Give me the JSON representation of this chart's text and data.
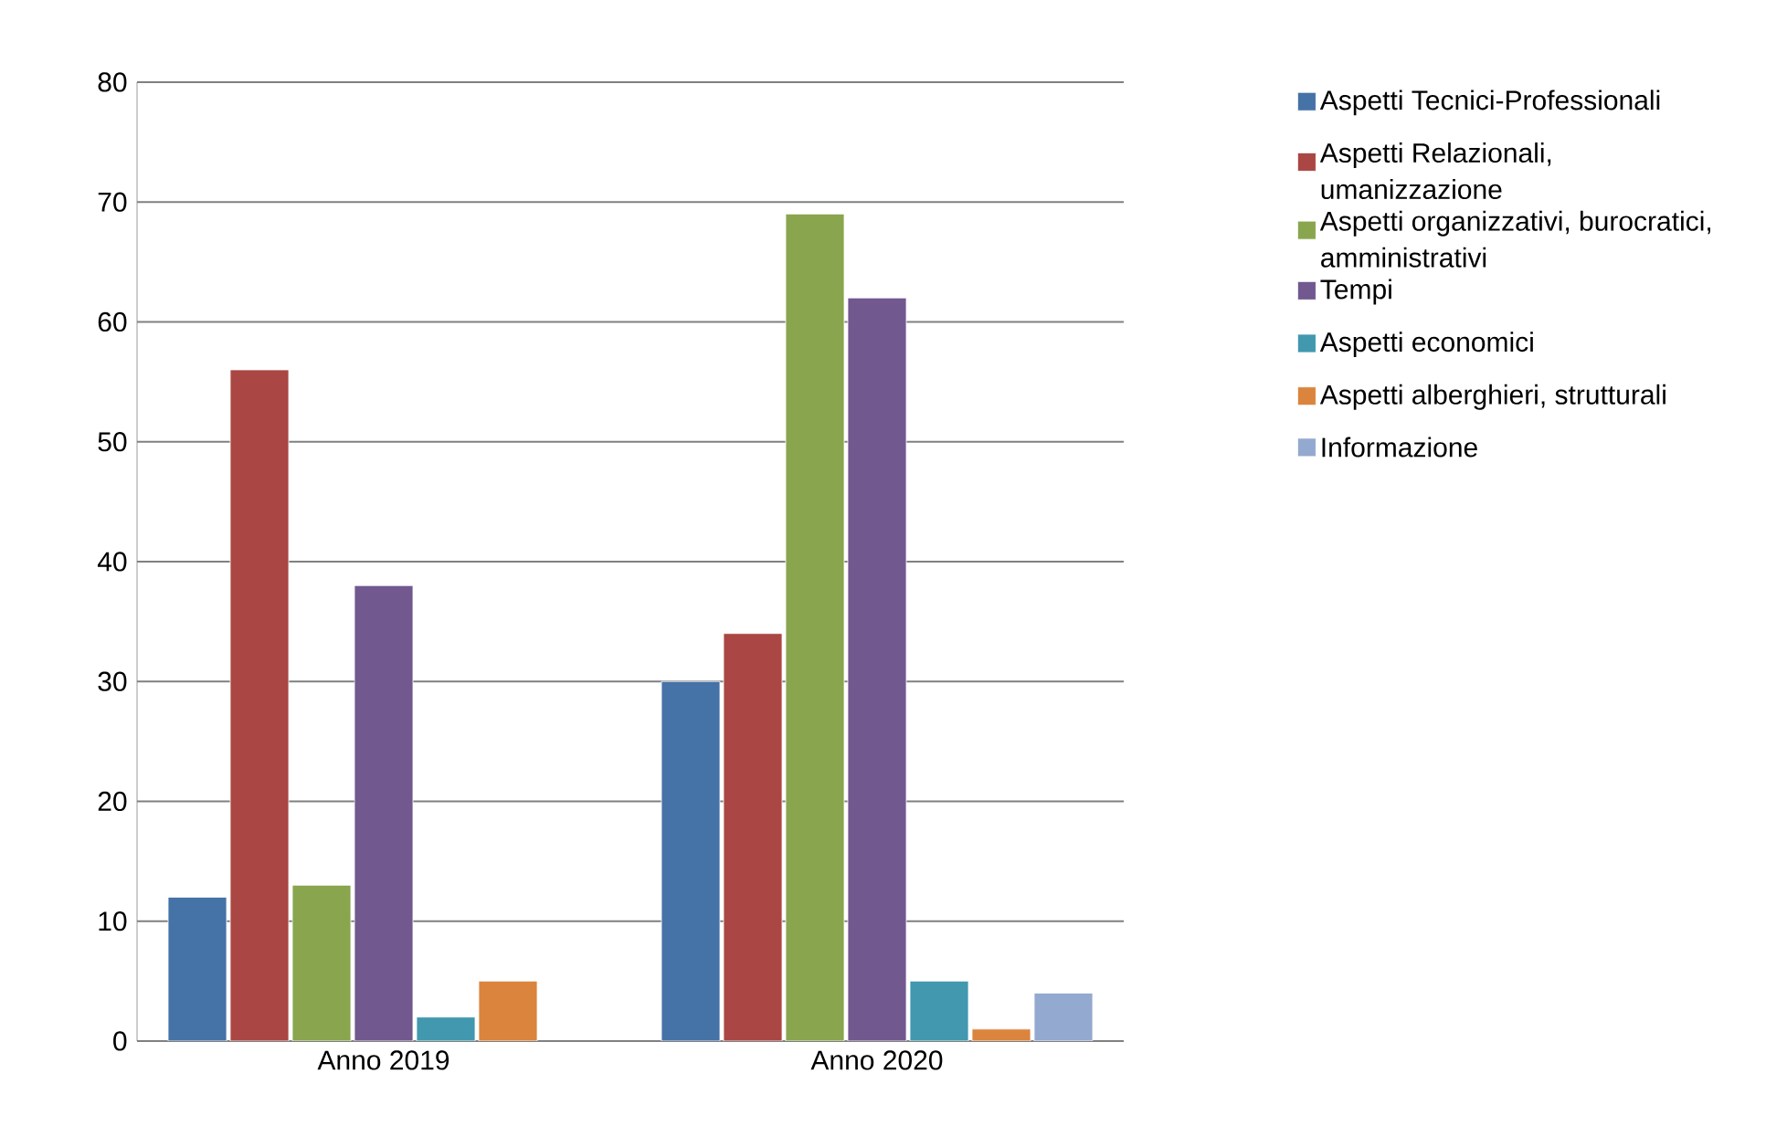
{
  "chart_data": {
    "type": "bar",
    "categories": [
      "Anno 2019",
      "Anno 2020"
    ],
    "series": [
      {
        "name": "Aspetti Tecnici-Professionali",
        "color": "#4572a7",
        "values": [
          12,
          30
        ]
      },
      {
        "name": "Aspetti Relazionali, umanizzazione",
        "color": "#aa4643",
        "values": [
          56,
          34
        ]
      },
      {
        "name": "Aspetti organizzativi, burocratici, amministrativi",
        "color": "#89a54e",
        "values": [
          13,
          69
        ]
      },
      {
        "name": "Tempi",
        "color": "#71588f",
        "values": [
          38,
          62
        ]
      },
      {
        "name": "Aspetti economici",
        "color": "#4198af",
        "values": [
          2,
          5
        ]
      },
      {
        "name": "Aspetti alberghieri, strutturali",
        "color": "#db843d",
        "values": [
          5,
          1
        ]
      },
      {
        "name": "Informazione",
        "color": "#93a9cf",
        "values": [
          null,
          4
        ]
      }
    ],
    "ylim": [
      0,
      80
    ],
    "yticks": [
      0,
      10,
      20,
      30,
      40,
      50,
      60,
      70,
      80
    ],
    "grid": "y",
    "legend": "right"
  }
}
